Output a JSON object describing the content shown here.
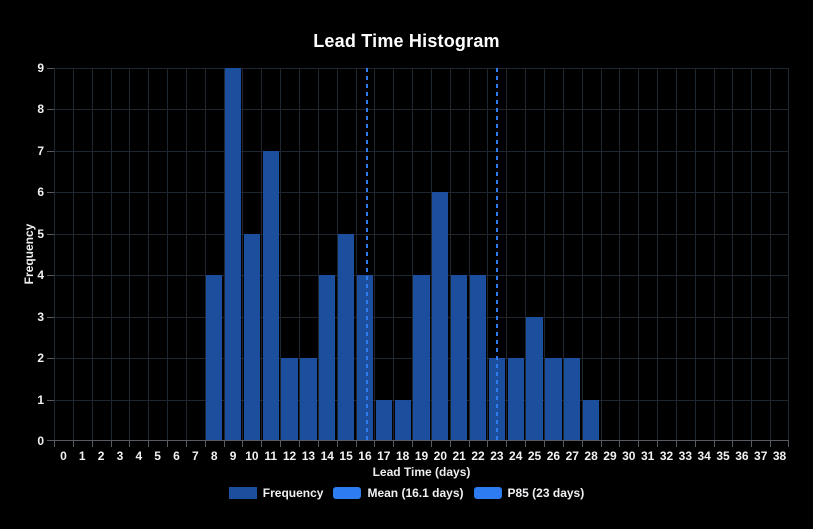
{
  "chart": {
    "colors": {
      "background": "#000000",
      "bar": "#1b4f9e",
      "annotation": "#2d7cf2",
      "grid": "#1e2630",
      "axis": "#565b61",
      "text": "#f0f1f3",
      "title_text": "#ffffff"
    }
  },
  "chart_data": {
    "type": "bar",
    "title": "Lead Time Histogram",
    "xlabel": "Lead Time (days)",
    "ylabel": "Frequency",
    "categories": [
      0,
      1,
      2,
      3,
      4,
      5,
      6,
      7,
      8,
      9,
      10,
      11,
      12,
      13,
      14,
      15,
      16,
      17,
      18,
      19,
      20,
      21,
      22,
      23,
      24,
      25,
      26,
      27,
      28,
      29,
      30,
      31,
      32,
      33,
      34,
      35,
      36,
      37,
      38
    ],
    "values": [
      0,
      0,
      0,
      0,
      0,
      0,
      0,
      0,
      4,
      9,
      5,
      7,
      2,
      2,
      4,
      5,
      4,
      1,
      1,
      4,
      6,
      4,
      4,
      2,
      2,
      3,
      2,
      2,
      1,
      0,
      0,
      0,
      0,
      0,
      0,
      0,
      0,
      0,
      0
    ],
    "ylim": [
      0,
      9
    ],
    "yticks": [
      0,
      1,
      2,
      3,
      4,
      5,
      6,
      7,
      8,
      9
    ],
    "grid": true,
    "legend_position": "bottom",
    "legend": [
      {
        "id": "frequency",
        "label": "Frequency",
        "swatch": "solid"
      },
      {
        "id": "mean",
        "label": "Mean (16.1 days)",
        "swatch": "dashed"
      },
      {
        "id": "p85",
        "label": "P85 (23 days)",
        "swatch": "dashed"
      }
    ],
    "annotations": [
      {
        "id": "mean",
        "type": "vline",
        "x": 16.1,
        "label": "Mean (16.1 days)",
        "style": "dashed"
      },
      {
        "id": "p85",
        "type": "vline",
        "x": 23,
        "label": "P85 (23 days)",
        "style": "dashed"
      }
    ]
  }
}
